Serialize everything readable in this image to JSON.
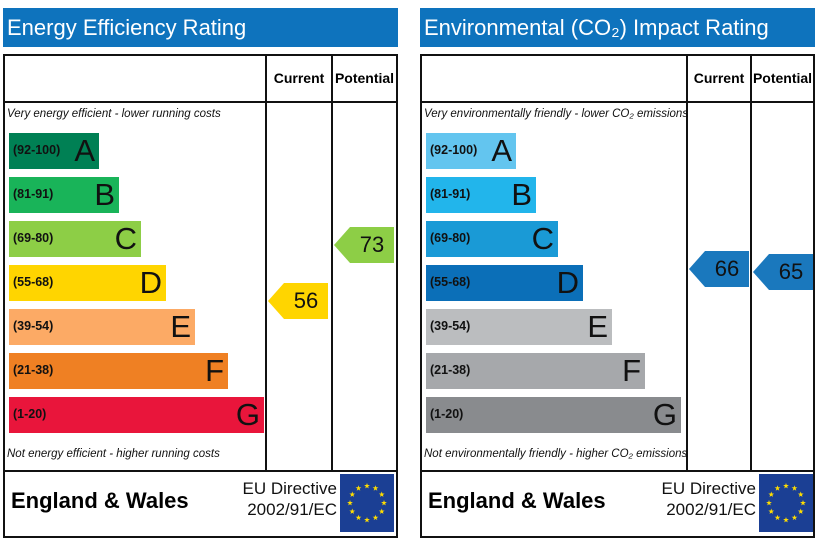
{
  "chart_data": [
    {
      "type": "bar",
      "title": "Energy Efficiency Rating",
      "columns": [
        "Current",
        "Potential"
      ],
      "top_note": "Very energy efficient - lower running costs",
      "bottom_note": "Not energy efficient - higher running costs",
      "bands": [
        {
          "letter": "A",
          "range": "(92-100)",
          "color": "#008054"
        },
        {
          "letter": "B",
          "range": "(81-91)",
          "color": "#19b459"
        },
        {
          "letter": "C",
          "range": "(69-80)",
          "color": "#8dce46"
        },
        {
          "letter": "D",
          "range": "(55-68)",
          "color": "#ffd500"
        },
        {
          "letter": "E",
          "range": "(39-54)",
          "color": "#fcaa65"
        },
        {
          "letter": "F",
          "range": "(21-38)",
          "color": "#ef8023"
        },
        {
          "letter": "G",
          "range": "(1-20)",
          "color": "#e9153b"
        }
      ],
      "current": {
        "value": 56,
        "color": "#ffd500"
      },
      "potential": {
        "value": 73,
        "color": "#8dce46"
      },
      "footer": {
        "region": "England & Wales",
        "directive_line1": "EU Directive",
        "directive_line2": "2002/91/EC"
      }
    },
    {
      "type": "bar",
      "title": "Environmental (CO₂) Impact Rating",
      "columns": [
        "Current",
        "Potential"
      ],
      "top_note": "Very environmentally friendly - lower CO₂ emissions",
      "bottom_note": "Not environmentally friendly - higher CO₂ emissions",
      "bands": [
        {
          "letter": "A",
          "range": "(92-100)",
          "color": "#63c5ef"
        },
        {
          "letter": "B",
          "range": "(81-91)",
          "color": "#22b5eb"
        },
        {
          "letter": "C",
          "range": "(69-80)",
          "color": "#1a9ad6"
        },
        {
          "letter": "D",
          "range": "(55-68)",
          "color": "#0b6fb8"
        },
        {
          "letter": "E",
          "range": "(39-54)",
          "color": "#bbbdbf"
        },
        {
          "letter": "F",
          "range": "(21-38)",
          "color": "#a6a8ab"
        },
        {
          "letter": "G",
          "range": "(1-20)",
          "color": "#898b8e"
        }
      ],
      "current": {
        "value": 66,
        "color": "#1a78bd"
      },
      "potential": {
        "value": 65,
        "color": "#1a78bd"
      },
      "footer": {
        "region": "England & Wales",
        "directive_line1": "EU Directive",
        "directive_line2": "2002/91/EC"
      }
    }
  ]
}
